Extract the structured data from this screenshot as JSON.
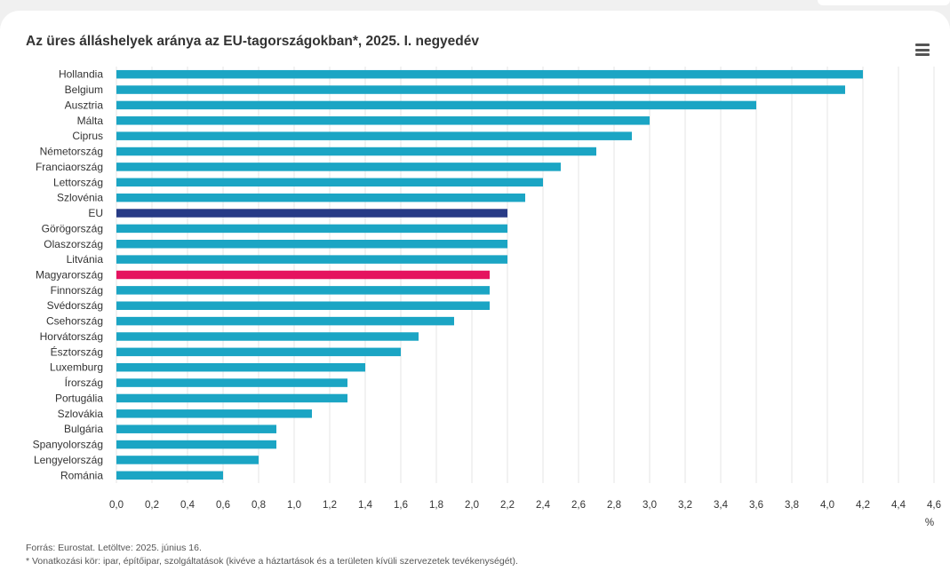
{
  "chart_data": {
    "type": "bar",
    "orientation": "horizontal",
    "title": "Az üres álláshelyek aránya az EU-tagországokban*, 2025. I. negyedév",
    "xlabel": "%",
    "xlim": [
      0,
      4.6
    ],
    "xticks": [
      "0,0",
      "0,2",
      "0,4",
      "0,6",
      "0,8",
      "1,0",
      "1,2",
      "1,4",
      "1,6",
      "1,8",
      "2,0",
      "2,2",
      "2,4",
      "2,6",
      "2,8",
      "3,0",
      "3,2",
      "3,4",
      "3,6",
      "3,8",
      "4,0",
      "4,2",
      "4,4",
      "4,6"
    ],
    "grid": true,
    "categories": [
      "Hollandia",
      "Belgium",
      "Ausztria",
      "Málta",
      "Ciprus",
      "Németország",
      "Franciaország",
      "Lettország",
      "Szlovénia",
      "EU",
      "Görögország",
      "Olaszország",
      "Litvánia",
      "Magyarország",
      "Finnország",
      "Svédország",
      "Csehország",
      "Horvátország",
      "Észtország",
      "Luxemburg",
      "Írország",
      "Portugália",
      "Szlovákia",
      "Bulgária",
      "Spanyolország",
      "Lengyelország",
      "Románia"
    ],
    "values": [
      4.2,
      4.1,
      3.6,
      3.0,
      2.9,
      2.7,
      2.5,
      2.4,
      2.3,
      2.2,
      2.2,
      2.2,
      2.2,
      2.1,
      2.1,
      2.1,
      1.9,
      1.7,
      1.6,
      1.4,
      1.3,
      1.3,
      1.1,
      0.9,
      0.9,
      0.8,
      0.6
    ],
    "colors": {
      "default": "#1ba5c4",
      "EU": "#283b86",
      "Magyarország": "#e5135f",
      "grid": "#e6e6e6",
      "axis_text": "#333333"
    }
  },
  "menu": {
    "icon": "hamburger-menu-icon"
  },
  "footer": {
    "source": "Forrás: Eurostat. Letöltve: 2025. június 16.",
    "note": "* Vonatkozási kör: ipar, építőipar, szolgáltatások (kivéve a háztartások és a területen kívüli szervezetek tevékenységét)."
  }
}
